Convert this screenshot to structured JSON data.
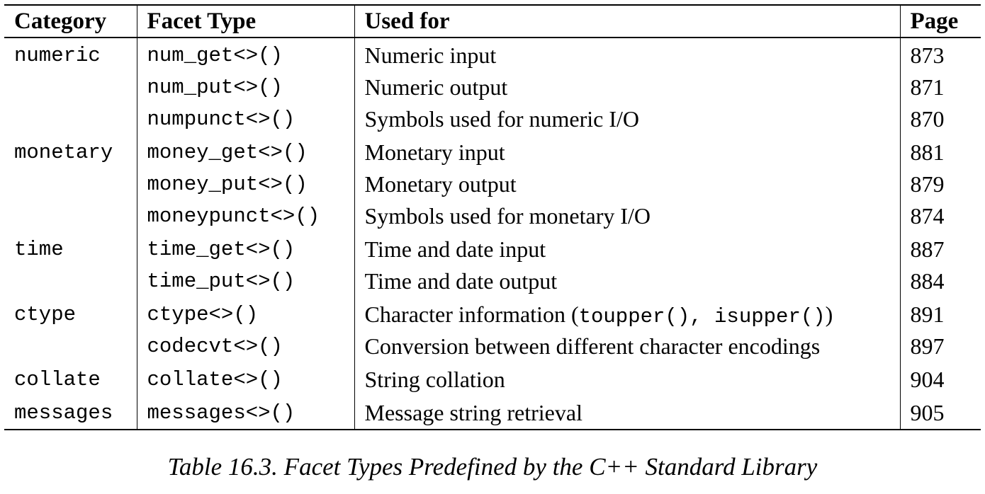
{
  "table": {
    "headers": {
      "category": "Category",
      "facet_type": "Facet Type",
      "used_for": "Used for",
      "page": "Page"
    },
    "rows": [
      {
        "category": "numeric",
        "facet_type": "num_get<>()",
        "used_for": "Numeric input",
        "page": "873"
      },
      {
        "category": "",
        "facet_type": "num_put<>()",
        "used_for": "Numeric output",
        "page": "871"
      },
      {
        "category": "",
        "facet_type": "numpunct<>()",
        "used_for": "Symbols used for numeric I/O",
        "page": "870"
      },
      {
        "category": "monetary",
        "facet_type": "money_get<>()",
        "used_for": "Monetary input",
        "page": "881"
      },
      {
        "category": "",
        "facet_type": "money_put<>()",
        "used_for": "Monetary output",
        "page": "879"
      },
      {
        "category": "",
        "facet_type": "moneypunct<>()",
        "used_for": "Symbols used for monetary I/O",
        "page": "874"
      },
      {
        "category": "time",
        "facet_type": "time_get<>()",
        "used_for": "Time and date input",
        "page": "887"
      },
      {
        "category": "",
        "facet_type": "time_put<>()",
        "used_for": "Time and date output",
        "page": "884"
      },
      {
        "category": "ctype",
        "facet_type": "ctype<>()",
        "used_for_prefix": "Character information (",
        "used_for_code": "toupper(), isupper()",
        "used_for_suffix": ")",
        "page": "891"
      },
      {
        "category": "",
        "facet_type": "codecvt<>()",
        "used_for": "Conversion between different character encodings",
        "page": "897"
      },
      {
        "category": "collate",
        "facet_type": "collate<>()",
        "used_for": "String collation",
        "page": "904"
      },
      {
        "category": "messages",
        "facet_type": "messages<>()",
        "used_for": "Message string retrieval",
        "page": "905"
      }
    ]
  },
  "caption": "Table 16.3. Facet Types Predefined by the C++ Standard Library"
}
